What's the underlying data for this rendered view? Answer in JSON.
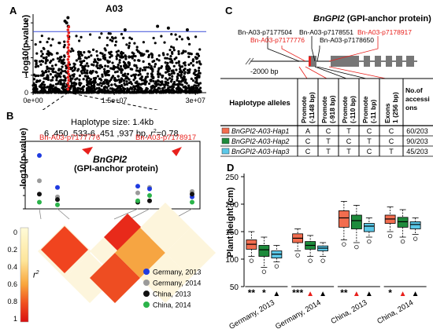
{
  "panels": {
    "A": "A",
    "B": "B",
    "C": "C",
    "D": "D"
  },
  "panel_a": {
    "title": "A03",
    "ylabel": "-log10(p-value)",
    "yticks": [
      "0",
      "1",
      "2",
      "3",
      "4"
    ],
    "xticks": [
      "0e+00",
      "1.5e+07",
      "3e+07"
    ],
    "threshold": 3.5
  },
  "panel_b": {
    "haplotype_line1": "Haplotype size: 1.4kb",
    "haplotype_line2_a": "6 ,450 ,533-6 ,451 ,937 bp, ",
    "haplotype_line2_r": "r",
    "haplotype_line2_b": "2",
    "haplotype_line2_c": "=0.78",
    "ylabel": "-log10(p-value)",
    "snp_left": "Bn-A03-p7177776",
    "snp_right": "Bn-A03-p7178917",
    "gene_name": "BnGPI2",
    "gene_desc": "(GPI-anchor protein)",
    "r2_label": "r",
    "r2_sup": "2",
    "r2_ticks": [
      "0",
      "0.2",
      "0.4",
      "0.6",
      "0.8",
      "1"
    ],
    "legend": [
      {
        "label": "Germany, 2013",
        "color": "#1f3be0"
      },
      {
        "label": "Germany, 2014",
        "color": "#9a9a9a"
      },
      {
        "label": "China, 2013",
        "color": "#111111"
      },
      {
        "label": "China, 2014",
        "color": "#2bb34a"
      }
    ]
  },
  "panel_c": {
    "gene_title": "BnGPI2",
    "gene_title_rest": " (GPI-anchor protein)",
    "snp_labels": [
      "Bn-A03-p7177504",
      "Bn-A03-p7177776",
      "Bn-A03-p7178551",
      "Bn-A03-p7178650",
      "Bn-A03-p7178917"
    ],
    "scale_label": "-2000 bp",
    "table": {
      "header_first": "Haplotype alleles",
      "columns": [
        "Promote (-1148 bp)",
        "Promote (-918 bp)",
        "Promote (-110 bp)",
        "Promote (-11 bp)",
        "Exons 1 (256 bp)",
        "No.of accessions"
      ],
      "rows": [
        {
          "name": "BnGPI2-A03-Hap1",
          "color": "#f26d4f",
          "cells": [
            "A",
            "C",
            "T",
            "C",
            "C",
            "60/203"
          ]
        },
        {
          "name": "BnGPI2-A03-Hap2",
          "color": "#1e8b3c",
          "cells": [
            "C",
            "T",
            "C",
            "T",
            "C",
            "90/203"
          ]
        },
        {
          "name": "BnGPI2-A03-Hap3",
          "color": "#5bc8e8",
          "cells": [
            "C",
            "T",
            "T",
            "C",
            "T",
            "45/203"
          ]
        }
      ]
    }
  },
  "panel_d": {
    "ylabel": "Plant height (cm)",
    "yticks": [
      "50",
      "100",
      "150",
      "200",
      "250"
    ],
    "groups": [
      "Germany, 2013",
      "Germany, 2014",
      "China, 2013",
      "China, 2014"
    ],
    "significance": [
      [
        "**",
        "*",
        "▲"
      ],
      [
        "***",
        "▲",
        "▲"
      ],
      [
        "**",
        "▲",
        "▲"
      ],
      [
        "*",
        "▲",
        "▲"
      ]
    ]
  },
  "chart_data": [
    {
      "type": "scatter",
      "title": "A03",
      "ylabel": "-log10(p-value)",
      "xlim": [
        0,
        32000000
      ],
      "ylim": [
        0,
        4.5
      ],
      "threshold": 3.5,
      "highlight_region_x": 6450000,
      "series": [
        {
          "values_note": "top hits",
          "x": [
            5900000,
            6200000,
            6450000,
            6500000,
            6600000,
            17000000,
            23000000,
            25000000,
            28500000
          ],
          "y": [
            4.1,
            4.0,
            4.3,
            3.8,
            3.2,
            3.6,
            3.8,
            3.7,
            3.6
          ]
        }
      ]
    },
    {
      "type": "box",
      "ylabel": "Plant height (cm)",
      "ylim": [
        50,
        250
      ],
      "categories": [
        "Germany, 2013",
        "Germany, 2014",
        "China, 2013",
        "China, 2014"
      ],
      "series": [
        {
          "name": "BnGPI2-A03-Hap1",
          "color": "#f26d4f",
          "stats": [
            [
              105,
              118,
              127,
              135,
              150
            ],
            [
              115,
              130,
              138,
              146,
              155
            ],
            [
              135,
              158,
              175,
              188,
              205
            ],
            [
              150,
              165,
              173,
              180,
              195
            ]
          ]
        },
        {
          "name": "BnGPI2-A03-Hap2",
          "color": "#1e8b3c",
          "stats": [
            [
              85,
              105,
              117,
              125,
              140
            ],
            [
              105,
              118,
              125,
              132,
              143
            ],
            [
              130,
              155,
              170,
              180,
              198
            ],
            [
              140,
              158,
              168,
              176,
              190
            ]
          ]
        },
        {
          "name": "BnGPI2-A03-Hap3",
          "color": "#5bc8e8",
          "stats": [
            [
              95,
              102,
              109,
              115,
              125
            ],
            [
              105,
              115,
              120,
              124,
              130
            ],
            [
              140,
              150,
              160,
              165,
              175
            ],
            [
              145,
              155,
              163,
              168,
              175
            ]
          ]
        }
      ]
    }
  ]
}
